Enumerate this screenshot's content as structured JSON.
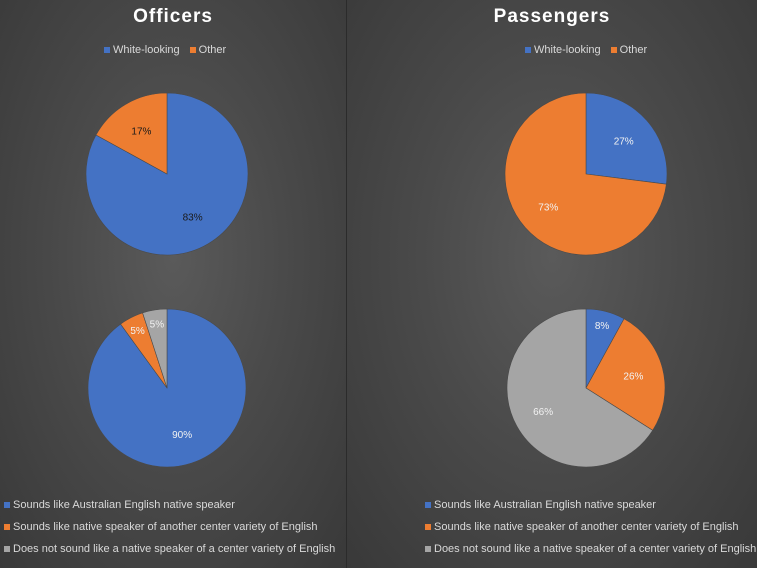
{
  "colors": {
    "blue": "#4472c4",
    "orange": "#ed7d31",
    "gray": "#a5a5a5"
  },
  "titles": {
    "left": "Officers",
    "right": "Passengers"
  },
  "legend_top": [
    {
      "label": "White-looking",
      "color": "#4472c4"
    },
    {
      "label": "Other",
      "color": "#ed7d31"
    }
  ],
  "legend_bottom": [
    {
      "label": "Sounds like Australian English native speaker",
      "color": "#4472c4"
    },
    {
      "label": "Sounds like native speaker of another center variety of English",
      "color": "#ed7d31"
    },
    {
      "label": "Does not sound like a native speaker of a center variety of English",
      "color": "#a5a5a5"
    }
  ],
  "chart_data": [
    {
      "type": "pie",
      "title": "Officers",
      "categories": [
        "White-looking",
        "Other"
      ],
      "values": [
        83,
        17
      ],
      "labels": [
        "83%",
        "17%"
      ],
      "colors": [
        "#4472c4",
        "#ed7d31"
      ],
      "label_colors": [
        "#1a1a1a",
        "#1a1a1a"
      ]
    },
    {
      "type": "pie",
      "title": "Passengers",
      "categories": [
        "White-looking",
        "Other"
      ],
      "values": [
        27,
        73
      ],
      "labels": [
        "27%",
        "73%"
      ],
      "colors": [
        "#4472c4",
        "#ed7d31"
      ],
      "label_colors": [
        "#f2f2f2",
        "#f2f2f2"
      ]
    },
    {
      "type": "pie",
      "title": "",
      "categories": [
        "Sounds like Australian English native speaker",
        "Sounds like native speaker of another center variety of English",
        "Does not sound like a native speaker of a center variety of English"
      ],
      "values": [
        90,
        5,
        5
      ],
      "labels": [
        "90%",
        "5%",
        "5%"
      ],
      "colors": [
        "#4472c4",
        "#ed7d31",
        "#a5a5a5"
      ],
      "label_colors": [
        "#f2f2f2",
        "#f2f2f2",
        "#f2f2f2"
      ]
    },
    {
      "type": "pie",
      "title": "",
      "categories": [
        "Sounds like Australian English native speaker",
        "Sounds like native speaker of another center variety of English",
        "Does not sound like a native speaker of a center variety of English"
      ],
      "values": [
        8,
        26,
        66
      ],
      "labels": [
        "8%",
        "26%",
        "66%"
      ],
      "colors": [
        "#4472c4",
        "#ed7d31",
        "#a5a5a5"
      ],
      "label_colors": [
        "#f2f2f2",
        "#f2f2f2",
        "#f2f2f2"
      ]
    }
  ]
}
